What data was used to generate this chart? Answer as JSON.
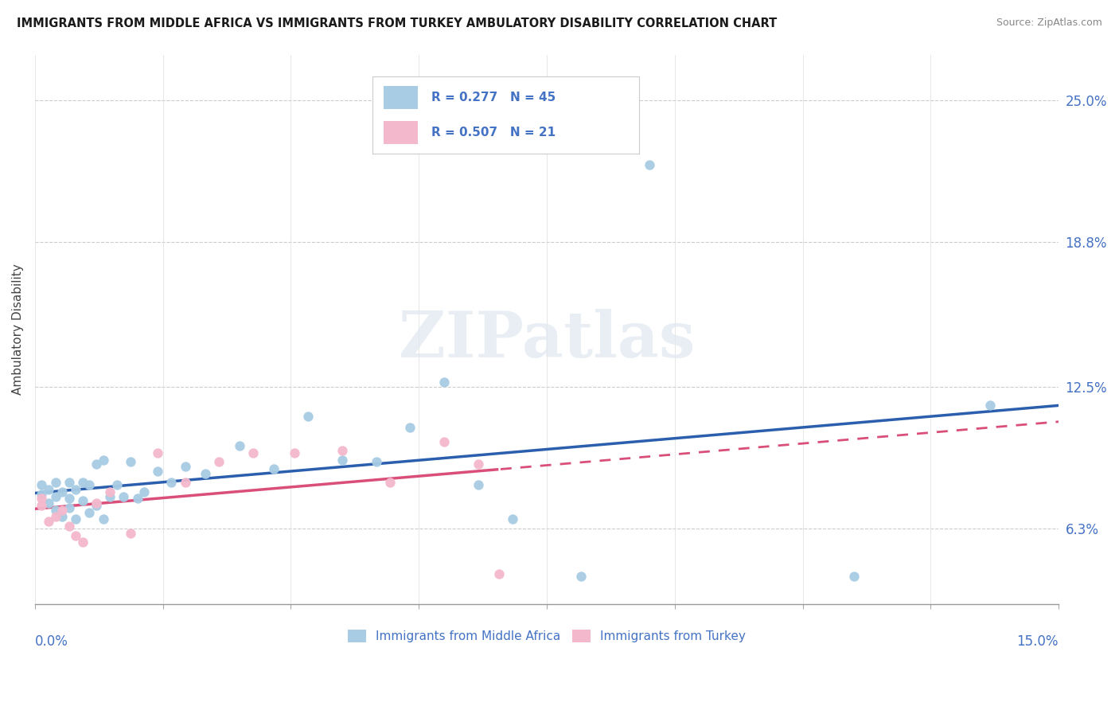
{
  "title": "IMMIGRANTS FROM MIDDLE AFRICA VS IMMIGRANTS FROM TURKEY AMBULATORY DISABILITY CORRELATION CHART",
  "source": "Source: ZipAtlas.com",
  "ylabel": "Ambulatory Disability",
  "yticks": [
    0.063,
    0.125,
    0.188,
    0.25
  ],
  "ytick_labels": [
    "6.3%",
    "12.5%",
    "18.8%",
    "25.0%"
  ],
  "xlim": [
    0.0,
    0.15
  ],
  "ylim": [
    0.03,
    0.27
  ],
  "legend1_r": "0.277",
  "legend1_n": "45",
  "legend2_r": "0.507",
  "legend2_n": "21",
  "blue_color": "#a8cce4",
  "pink_color": "#f4b8cc",
  "blue_line_color": "#2b5fad",
  "pink_line_color": "#d94f7a",
  "watermark_text": "ZIPatlas",
  "blue_scatter_x": [
    0.001,
    0.001,
    0.002,
    0.002,
    0.003,
    0.003,
    0.003,
    0.004,
    0.004,
    0.005,
    0.005,
    0.005,
    0.006,
    0.006,
    0.007,
    0.007,
    0.008,
    0.008,
    0.009,
    0.009,
    0.01,
    0.01,
    0.011,
    0.012,
    0.013,
    0.014,
    0.015,
    0.016,
    0.018,
    0.02,
    0.022,
    0.025,
    0.03,
    0.035,
    0.04,
    0.045,
    0.05,
    0.055,
    0.06,
    0.065,
    0.07,
    0.08,
    0.09,
    0.12,
    0.14
  ],
  "blue_scatter_y": [
    0.078,
    0.082,
    0.074,
    0.08,
    0.071,
    0.077,
    0.083,
    0.068,
    0.079,
    0.072,
    0.076,
    0.083,
    0.067,
    0.08,
    0.075,
    0.083,
    0.07,
    0.082,
    0.073,
    0.091,
    0.067,
    0.093,
    0.077,
    0.082,
    0.077,
    0.092,
    0.076,
    0.079,
    0.088,
    0.083,
    0.09,
    0.087,
    0.099,
    0.089,
    0.112,
    0.093,
    0.092,
    0.107,
    0.127,
    0.082,
    0.067,
    0.042,
    0.222,
    0.042,
    0.117
  ],
  "pink_scatter_x": [
    0.001,
    0.001,
    0.002,
    0.003,
    0.004,
    0.005,
    0.006,
    0.007,
    0.009,
    0.011,
    0.014,
    0.018,
    0.022,
    0.027,
    0.032,
    0.038,
    0.045,
    0.052,
    0.06,
    0.065,
    0.068
  ],
  "pink_scatter_y": [
    0.076,
    0.073,
    0.066,
    0.068,
    0.071,
    0.064,
    0.06,
    0.057,
    0.074,
    0.079,
    0.061,
    0.096,
    0.083,
    0.092,
    0.096,
    0.096,
    0.097,
    0.083,
    0.101,
    0.091,
    0.043
  ]
}
